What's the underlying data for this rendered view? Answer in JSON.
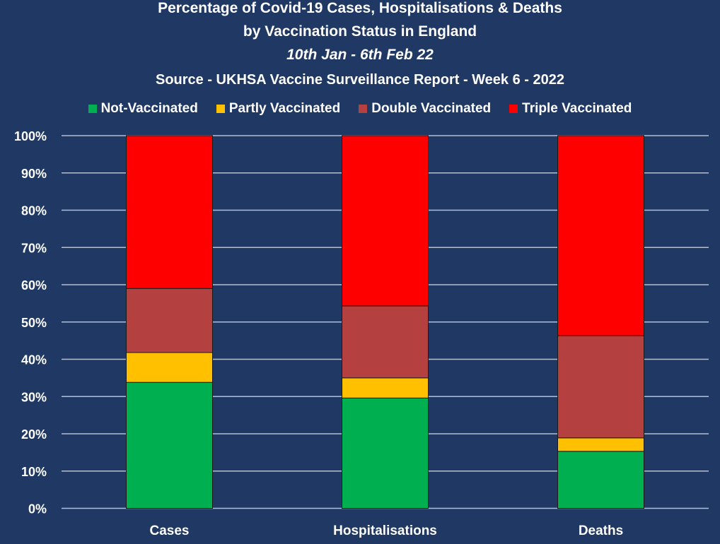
{
  "chart_data": {
    "type": "bar",
    "stacked": true,
    "title": "Percentage of Covid-19 Cases, Hospitalisations & Deaths",
    "title_line2": "by Vaccination Status in England",
    "subtitle": "10th Jan - 6th Feb 22",
    "source": "Source - UKHSA Vaccine Surveillance Report - Week 6 - 2022",
    "categories": [
      "Cases",
      "Hospitalisations",
      "Deaths"
    ],
    "series": [
      {
        "name": "Not-Vaccinated",
        "color": "#00b050",
        "values": [
          33.8,
          29.6,
          15.3
        ]
      },
      {
        "name": "Partly Vaccinated",
        "color": "#ffc000",
        "values": [
          8.0,
          5.4,
          3.6
        ]
      },
      {
        "name": "Double Vaccinated",
        "color": "#b44040",
        "values": [
          17.2,
          19.3,
          27.4
        ]
      },
      {
        "name": "Triple Vaccinated",
        "color": "#ff0000",
        "values": [
          41.0,
          45.7,
          53.7
        ]
      }
    ],
    "ylim": [
      0,
      100
    ],
    "yticks": [
      "0%",
      "10%",
      "20%",
      "30%",
      "40%",
      "50%",
      "60%",
      "70%",
      "80%",
      "90%",
      "100%"
    ],
    "grid": true,
    "legend": "top"
  }
}
